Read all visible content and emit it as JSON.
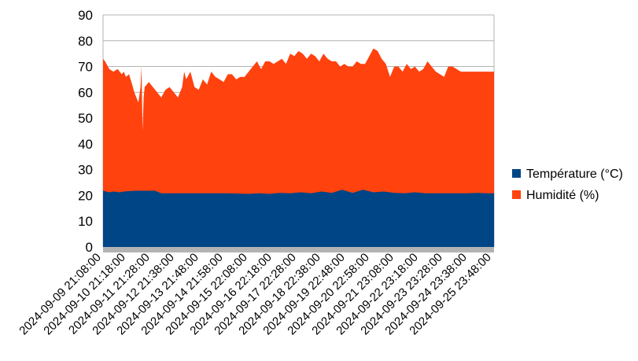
{
  "chart_data": {
    "type": "area",
    "stacked": false,
    "title": "",
    "xlabel": "",
    "ylabel": "",
    "ylim": [
      0,
      90
    ],
    "yticks": [
      0,
      10,
      20,
      30,
      40,
      50,
      60,
      70,
      80,
      90
    ],
    "grid": true,
    "legend_position": "right",
    "categories": [
      "2024-09-09 21:08:00",
      "2024-09-10 21:18:00",
      "2024-09-11 21:28:00",
      "2024-09-12 21:38:00",
      "2024-09-13 21:48:00",
      "2024-09-14 21:58:00",
      "2024-09-15 22:08:00",
      "2024-09-16 22:18:00",
      "2024-09-17 22:28:00",
      "2024-09-18 22:38:00",
      "2024-09-19 22:48:00",
      "2024-09-20 22:58:00",
      "2024-09-21 23:08:00",
      "2024-09-22 23:18:00",
      "2024-09-23 23:28:00",
      "2024-09-24 23:38:00",
      "2024-09-25 23:48:00"
    ],
    "series": [
      {
        "name": "Humidité (%)",
        "color": "#ff420e",
        "x": [
          0,
          0.1,
          0.3,
          0.5,
          0.7,
          0.9,
          1.0,
          1.1,
          1.25,
          1.4,
          1.5,
          1.6,
          1.7,
          1.8,
          1.85,
          1.9,
          1.95,
          2.0,
          2.2,
          2.4,
          2.6,
          2.8,
          3.0,
          3.2,
          3.4,
          3.6,
          3.8,
          3.9,
          4.0,
          4.2,
          4.4,
          4.6,
          4.8,
          5.0,
          5.2,
          5.4,
          5.6,
          5.8,
          6.0,
          6.2,
          6.4,
          6.6,
          6.8,
          7.0,
          7.2,
          7.4,
          7.6,
          7.8,
          8.0,
          8.2,
          8.4,
          8.6,
          8.8,
          9.0,
          9.2,
          9.4,
          9.6,
          9.8,
          10.0,
          10.2,
          10.4,
          10.6,
          10.8,
          11.0,
          11.2,
          11.4,
          11.6,
          11.8,
          12.0,
          12.2,
          12.4,
          12.6,
          12.8,
          13.0,
          13.2,
          13.4,
          13.6,
          13.8,
          14.0,
          14.2,
          14.4,
          14.6,
          14.8,
          15.0,
          15.2,
          15.4,
          15.6,
          15.8,
          16.0,
          16.2,
          16.4,
          16.6,
          16.8,
          17.0,
          17.2,
          17.4,
          17.6,
          17.8,
          18.0,
          18.2,
          18.4,
          18.6,
          18.8
        ],
        "values": [
          73,
          72,
          69,
          68,
          69,
          67,
          68,
          66,
          67,
          63,
          60,
          58,
          56,
          62,
          70,
          45,
          58,
          62,
          64,
          62,
          60,
          58,
          61,
          62,
          60,
          58,
          62,
          68,
          65,
          68,
          62,
          61,
          65,
          63,
          68,
          66,
          65,
          64,
          67,
          67,
          65,
          66,
          66,
          68,
          70,
          72,
          69,
          72,
          72,
          71,
          72,
          73,
          71,
          75,
          74,
          76,
          75,
          73,
          75,
          74,
          72,
          75,
          73,
          72,
          72,
          70,
          71,
          70,
          70,
          72,
          71,
          71,
          74,
          77,
          76,
          73,
          71,
          66,
          70,
          70,
          68,
          71,
          69,
          70,
          68,
          69,
          72,
          70,
          68,
          67,
          66,
          70,
          70,
          69,
          68,
          68,
          68,
          68,
          68,
          68,
          68,
          68,
          68
        ]
      },
      {
        "name": "Température (°C)",
        "color": "#004586",
        "x": [
          0,
          0.3,
          0.5,
          0.8,
          1.0,
          1.5,
          2.0,
          2.5,
          2.8,
          3.0,
          4.0,
          5.0,
          6.0,
          7.0,
          7.5,
          8.0,
          8.5,
          9.0,
          9.5,
          10.0,
          10.5,
          11.0,
          11.5,
          12.0,
          12.5,
          13.0,
          13.5,
          14.0,
          14.5,
          15.0,
          15.5,
          16.0,
          16.5,
          17.0,
          17.5,
          18.0,
          18.5,
          18.8
        ],
        "values": [
          21.8,
          21.2,
          21.5,
          21.2,
          21.5,
          21.8,
          21.8,
          21.8,
          20.8,
          20.8,
          20.8,
          20.8,
          20.8,
          20.6,
          20.8,
          20.6,
          21.0,
          20.8,
          21.2,
          20.8,
          21.5,
          21.0,
          22.2,
          21.0,
          22.2,
          21.2,
          21.5,
          21.0,
          20.8,
          21.2,
          20.8,
          20.8,
          20.8,
          20.8,
          20.8,
          21.0,
          20.8,
          20.8
        ]
      }
    ]
  }
}
